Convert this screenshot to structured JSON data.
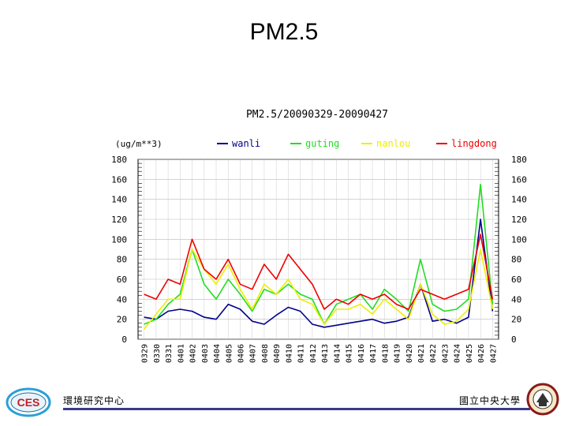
{
  "slide": {
    "title": "PM2.5",
    "footer_left": "環境研究中心",
    "footer_right": "國立中央大學",
    "logo_left_text": "CES"
  },
  "colors": {
    "wanli": "#00008b",
    "guting": "#22dd22",
    "nanlou": "#eeee00",
    "lingdong": "#ee0000",
    "footer_bar": "#3a3a8a"
  },
  "chart_data": {
    "type": "line",
    "title": "PM2.5/20090329-20090427",
    "ylabel": "(ug/m**3)",
    "ylim": [
      0,
      180
    ],
    "yticks": [
      0,
      20,
      40,
      60,
      80,
      100,
      120,
      140,
      160,
      180
    ],
    "categories": [
      "0329",
      "0330",
      "0331",
      "0401",
      "0402",
      "0403",
      "0404",
      "0405",
      "0406",
      "0407",
      "0408",
      "0409",
      "0410",
      "0411",
      "0412",
      "0413",
      "0414",
      "0415",
      "0416",
      "0417",
      "0418",
      "0419",
      "0420",
      "0421",
      "0422",
      "0423",
      "0424",
      "0425",
      "0426",
      "0427"
    ],
    "legend_position": "top",
    "series": [
      {
        "name": "wanli",
        "color": "#00008b",
        "values": [
          22,
          20,
          28,
          30,
          28,
          22,
          20,
          35,
          30,
          18,
          15,
          24,
          32,
          28,
          15,
          12,
          14,
          16,
          18,
          20,
          16,
          18,
          22,
          55,
          18,
          20,
          16,
          22,
          120,
          28
        ]
      },
      {
        "name": "guting",
        "color": "#22dd22",
        "values": [
          15,
          20,
          35,
          45,
          90,
          55,
          40,
          60,
          45,
          28,
          50,
          45,
          55,
          45,
          40,
          15,
          35,
          40,
          45,
          30,
          50,
          40,
          28,
          80,
          35,
          28,
          30,
          40,
          155,
          35
        ]
      },
      {
        "name": "nanlou",
        "color": "#eeee00",
        "values": [
          10,
          25,
          40,
          40,
          90,
          70,
          55,
          75,
          50,
          30,
          55,
          45,
          60,
          40,
          35,
          15,
          30,
          30,
          35,
          25,
          40,
          30,
          20,
          55,
          25,
          15,
          18,
          30,
          90,
          30
        ]
      },
      {
        "name": "lingdong",
        "color": "#ee0000",
        "values": [
          45,
          40,
          60,
          55,
          100,
          70,
          60,
          80,
          55,
          50,
          75,
          60,
          85,
          70,
          55,
          30,
          40,
          35,
          45,
          40,
          45,
          35,
          30,
          50,
          45,
          40,
          45,
          50,
          105,
          40
        ]
      }
    ]
  }
}
